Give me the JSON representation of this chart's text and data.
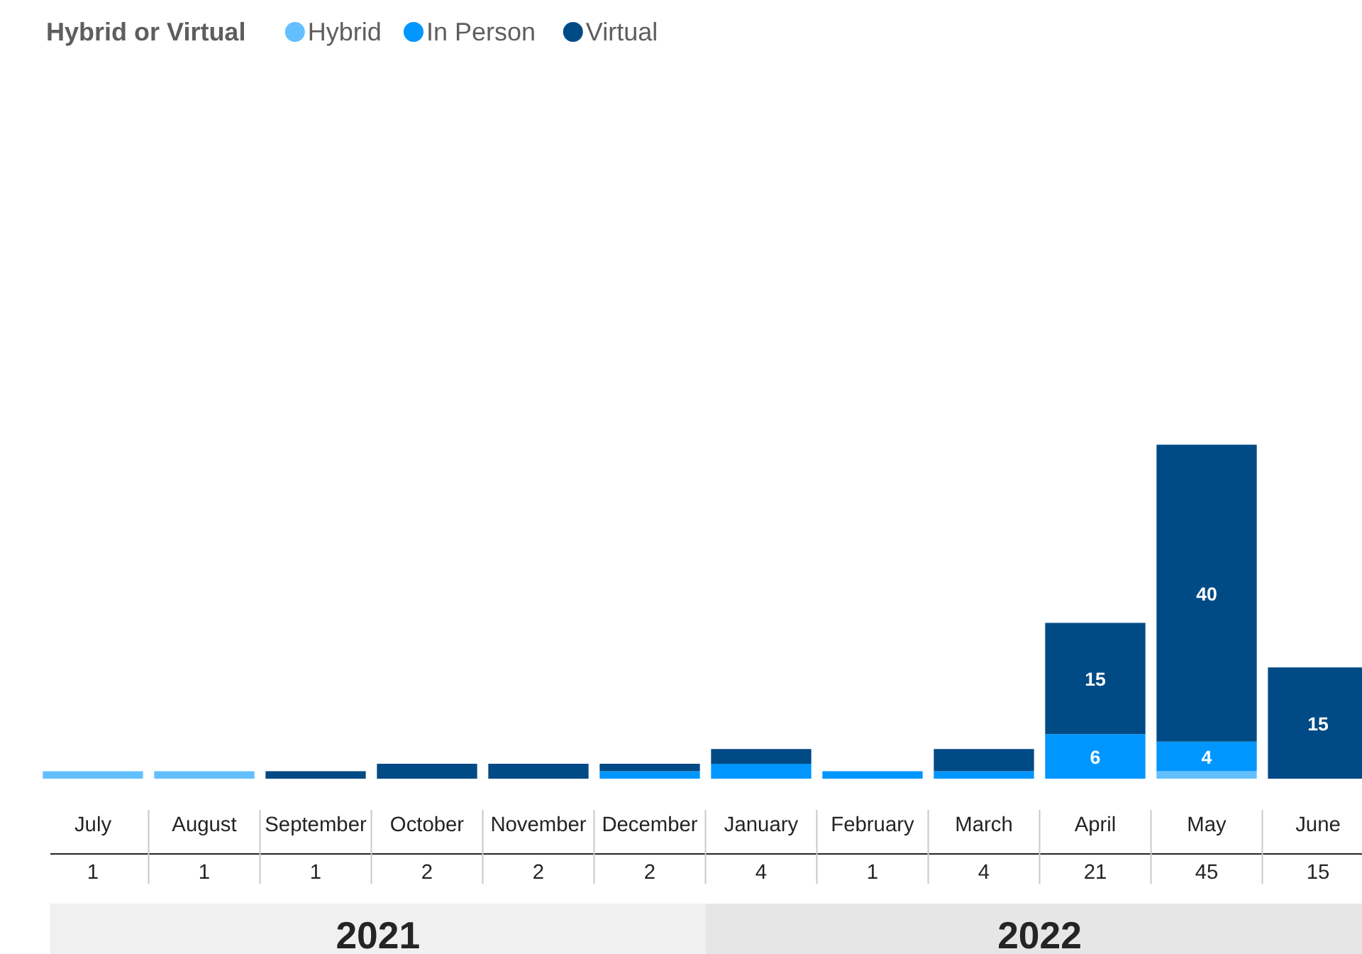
{
  "chart_data": {
    "type": "bar",
    "stacked": true,
    "legend_title": "Hybrid or Virtual",
    "legend": "top left",
    "categories": [
      "July",
      "August",
      "September",
      "October",
      "November",
      "December",
      "January",
      "February",
      "March",
      "April",
      "May",
      "June"
    ],
    "series": [
      {
        "name": "Hybrid",
        "color": "#64bfff",
        "values": [
          1,
          1,
          0,
          0,
          0,
          0,
          0,
          0,
          0,
          0,
          1,
          0
        ],
        "value_labels": [
          null,
          null,
          null,
          null,
          null,
          null,
          null,
          null,
          null,
          null,
          null,
          null
        ]
      },
      {
        "name": "In Person",
        "color": "#0096ff",
        "values": [
          0,
          0,
          0,
          0,
          0,
          1,
          2,
          1,
          1,
          6,
          4,
          0
        ],
        "value_labels": [
          null,
          null,
          null,
          null,
          null,
          null,
          null,
          null,
          null,
          "6",
          "4",
          null
        ]
      },
      {
        "name": "Virtual",
        "color": "#004a85",
        "values": [
          0,
          0,
          1,
          2,
          2,
          1,
          2,
          0,
          3,
          15,
          40,
          15
        ],
        "value_labels": [
          null,
          null,
          null,
          null,
          null,
          null,
          null,
          null,
          null,
          "15",
          "40",
          "15"
        ]
      }
    ],
    "annotations": [
      "1",
      "1",
      "1",
      "2",
      "2",
      "2",
      "4",
      "1",
      "4",
      "21",
      "45",
      "15",
      "2021",
      "2022"
    ]
  }
}
